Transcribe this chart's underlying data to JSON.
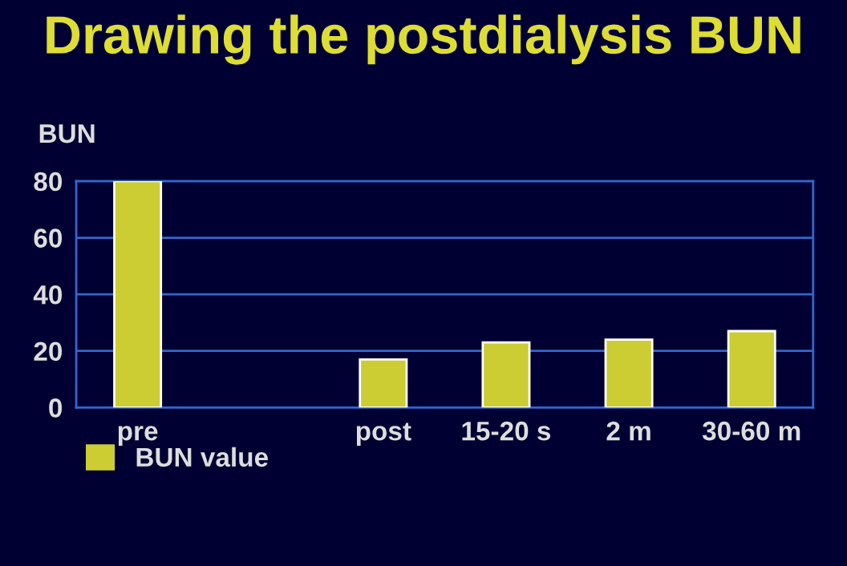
{
  "chart_data": {
    "type": "bar",
    "title": "Drawing the postdialysis BUN",
    "ylabel": "BUN",
    "categories": [
      "pre",
      null,
      "post",
      "15-20 s",
      "2 m",
      "30-60 m"
    ],
    "series": [
      {
        "name": "BUN value",
        "color": "#cccc33",
        "values": [
          80,
          null,
          17,
          23,
          24,
          27
        ]
      }
    ],
    "ylim": [
      0,
      80
    ],
    "yticks": [
      0,
      20,
      40,
      60,
      80
    ],
    "grid": "y",
    "legend": "bottom left"
  }
}
